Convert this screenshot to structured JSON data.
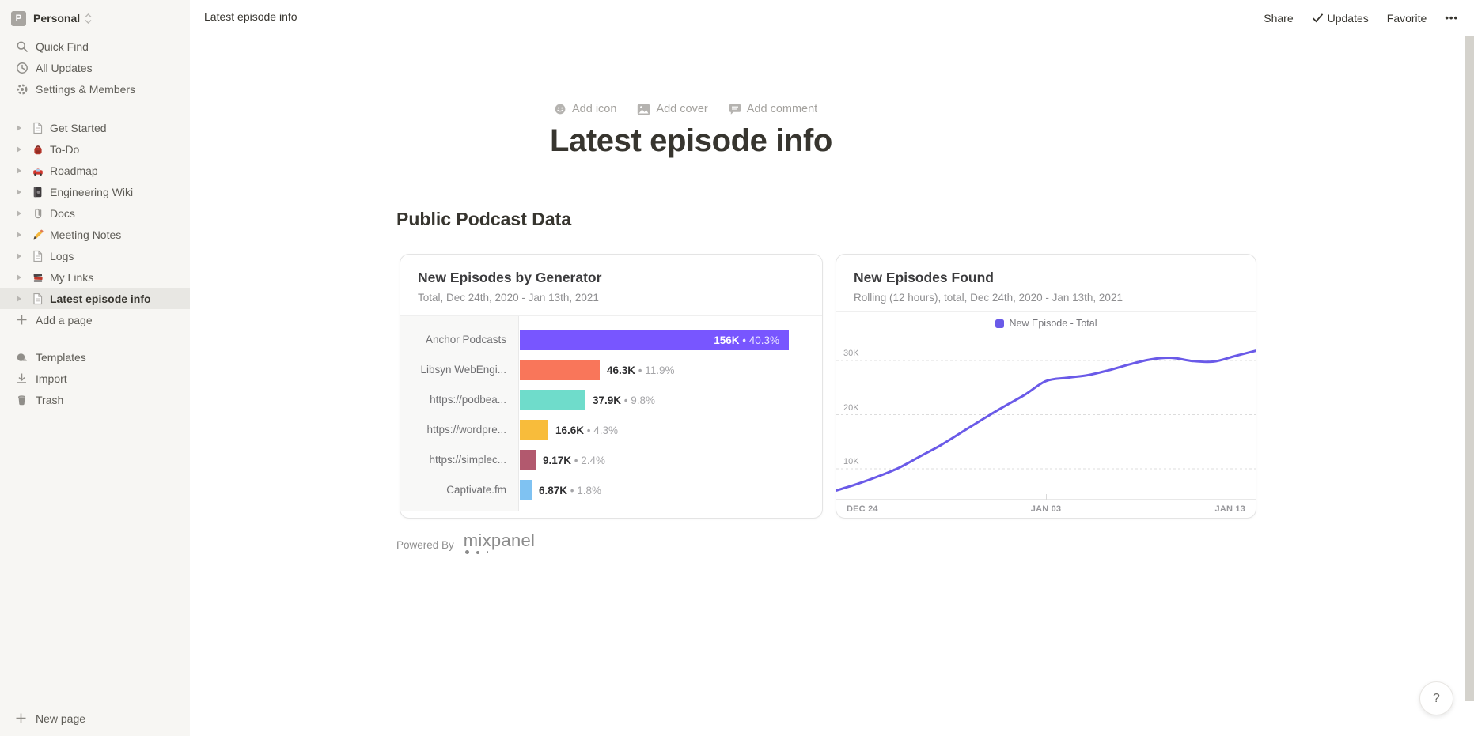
{
  "workspace": {
    "name": "Personal",
    "avatar_letter": "P"
  },
  "sidebar": {
    "menu": [
      {
        "label": "Quick Find",
        "icon": "search-icon"
      },
      {
        "label": "All Updates",
        "icon": "clock-icon"
      },
      {
        "label": "Settings & Members",
        "icon": "gear-icon"
      }
    ],
    "pages": [
      {
        "label": "Get Started",
        "icon": "document"
      },
      {
        "label": "To-Do",
        "icon": "backpack"
      },
      {
        "label": "Roadmap",
        "icon": "car"
      },
      {
        "label": "Engineering Wiki",
        "icon": "notebook"
      },
      {
        "label": "Docs",
        "icon": "paperclip"
      },
      {
        "label": "Meeting Notes",
        "icon": "pencil"
      },
      {
        "label": "Logs",
        "icon": "document"
      },
      {
        "label": "My Links",
        "icon": "books"
      },
      {
        "label": "Latest episode info",
        "icon": "document",
        "selected": true
      }
    ],
    "add_page_label": "Add a page",
    "footer": [
      {
        "label": "Templates",
        "icon": "templates-icon"
      },
      {
        "label": "Import",
        "icon": "import-icon"
      },
      {
        "label": "Trash",
        "icon": "trash-icon"
      }
    ],
    "new_page_label": "New page"
  },
  "topbar": {
    "breadcrumb": "Latest episode info",
    "share_label": "Share",
    "updates_label": "Updates",
    "favorite_label": "Favorite",
    "more_label": "•••"
  },
  "page": {
    "add_icon_label": "Add icon",
    "add_cover_label": "Add cover",
    "add_comment_label": "Add comment",
    "title": "Latest episode info",
    "section_heading": "Public Podcast Data",
    "powered_by_label": "Powered By",
    "mixpanel_wordmark": "mixpanel",
    "help_label": "?"
  },
  "chart_data": [
    {
      "type": "bar",
      "orientation": "horizontal",
      "title": "New Episodes by Generator",
      "subtitle": "Total, Dec 24th, 2020 - Jan 13th, 2021",
      "categories": [
        "Anchor Podcasts",
        "Libsyn WebEngi...",
        "https://podbea...",
        "https://wordpre...",
        "https://simplec...",
        "Captivate.fm"
      ],
      "values": [
        156000,
        46300,
        37900,
        16600,
        9170,
        6870
      ],
      "value_labels": [
        "156K",
        "46.3K",
        "37.9K",
        "16.6K",
        "9.17K",
        "6.87K"
      ],
      "percent_labels": [
        "40.3%",
        "11.9%",
        "9.8%",
        "4.3%",
        "2.4%",
        "1.8%"
      ],
      "colors": [
        "#7856FF",
        "#F9765A",
        "#6FDCCB",
        "#F8BC3B",
        "#B2596E",
        "#7FC2F2"
      ],
      "xlim": [
        0,
        156000
      ],
      "grid": false
    },
    {
      "type": "line",
      "title": "New Episodes Found",
      "subtitle": "Rolling (12 hours), total, Dec 24th, 2020 - Jan 13th, 2021",
      "legend_position": "top-center",
      "series": [
        {
          "name": "New Episode - Total",
          "color": "#6A5AE8",
          "x": [
            "Dec 24",
            "Dec 25",
            "Dec 26",
            "Dec 27",
            "Dec 28",
            "Dec 29",
            "Dec 30",
            "Dec 31",
            "Jan 01",
            "Jan 02",
            "Jan 03",
            "Jan 04",
            "Jan 05",
            "Jan 06",
            "Jan 07",
            "Jan 08",
            "Jan 09",
            "Jan 10",
            "Jan 11",
            "Jan 12",
            "Jan 13"
          ],
          "values": [
            6000,
            7200,
            8600,
            10200,
            12300,
            14400,
            16800,
            19200,
            21500,
            23700,
            26200,
            26800,
            27300,
            28200,
            29300,
            30200,
            30500,
            29900,
            29800,
            30800,
            31800
          ]
        }
      ],
      "ylabel": "",
      "xlabel": "",
      "ylim": [
        4400,
        35000
      ],
      "y_ticks": [
        10000,
        20000,
        30000
      ],
      "y_tick_labels": [
        "10K",
        "20K",
        "30K"
      ],
      "x_tick_labels": [
        "DEC 24",
        "JAN 03",
        "JAN 13"
      ],
      "grid": true
    }
  ]
}
